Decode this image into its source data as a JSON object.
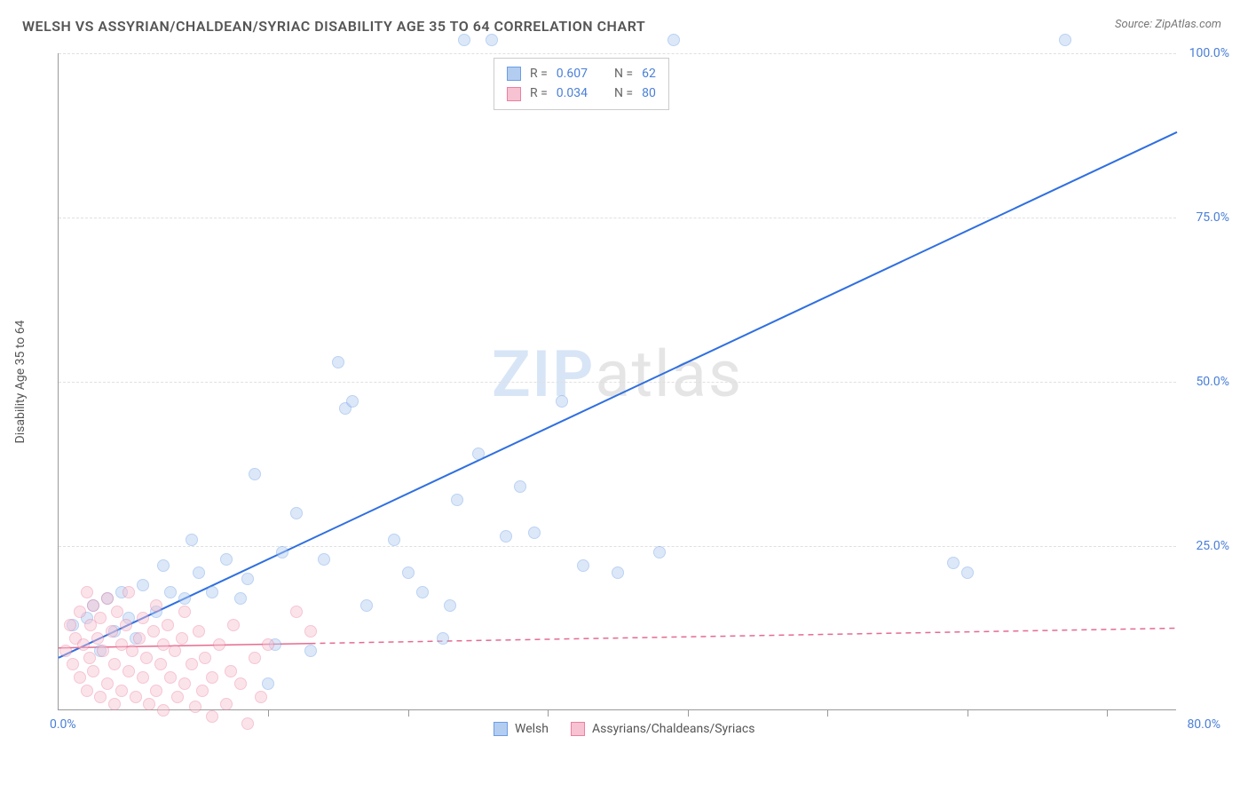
{
  "title": "WELSH VS ASSYRIAN/CHALDEAN/SYRIAC DISABILITY AGE 35 TO 64 CORRELATION CHART",
  "source": "Source: ZipAtlas.com",
  "y_axis_label": "Disability Age 35 to 64",
  "watermark": {
    "prefix": "ZIP",
    "suffix": "atlas"
  },
  "chart": {
    "type": "scatter",
    "background_color": "#ffffff",
    "grid_color": "#e0e0e0",
    "axis_color": "#999999",
    "xlim": [
      0,
      80
    ],
    "ylim": [
      0,
      100
    ],
    "x_origin_label": "0.0%",
    "x_max_label": "80.0%",
    "y_tick_labels": [
      "25.0%",
      "50.0%",
      "75.0%",
      "100.0%"
    ],
    "y_tick_positions": [
      25,
      50,
      75,
      100
    ],
    "x_tick_positions": [
      15,
      25,
      35,
      45,
      55,
      65,
      75
    ],
    "tick_label_color": "#4a7fd8",
    "tick_label_fontsize": 14,
    "marker_radius": 7,
    "marker_opacity": 0.45,
    "marker_stroke_opacity": 0.7
  },
  "series": [
    {
      "name": "Welsh",
      "color": "#77a5e8",
      "fill_color": "#b3cdf0",
      "stroke_color": "#6a9de6",
      "trend": {
        "x1": 0,
        "y1": 8,
        "x2": 80,
        "y2": 88,
        "style": "solid",
        "width": 2,
        "color": "#2f6fe0",
        "solid_until_x": 80
      },
      "points": [
        [
          1,
          13
        ],
        [
          2,
          14
        ],
        [
          2.5,
          16
        ],
        [
          3,
          9
        ],
        [
          3.5,
          17
        ],
        [
          4,
          12
        ],
        [
          4.5,
          18
        ],
        [
          5,
          14
        ],
        [
          5.5,
          11
        ],
        [
          6,
          19
        ],
        [
          7,
          15
        ],
        [
          7.5,
          22
        ],
        [
          8,
          18
        ],
        [
          9,
          17
        ],
        [
          9.5,
          26
        ],
        [
          10,
          21
        ],
        [
          11,
          18
        ],
        [
          12,
          23
        ],
        [
          13,
          17
        ],
        [
          13.5,
          20
        ],
        [
          14,
          36
        ],
        [
          15,
          4
        ],
        [
          15.5,
          10
        ],
        [
          16,
          24
        ],
        [
          17,
          30
        ],
        [
          18,
          9
        ],
        [
          19,
          23
        ],
        [
          20,
          53
        ],
        [
          20.5,
          46
        ],
        [
          21,
          47
        ],
        [
          22,
          16
        ],
        [
          24,
          26
        ],
        [
          25,
          21
        ],
        [
          26,
          18
        ],
        [
          27.5,
          11
        ],
        [
          28,
          16
        ],
        [
          28.5,
          32
        ],
        [
          29,
          102
        ],
        [
          30,
          39
        ],
        [
          31,
          102
        ],
        [
          32,
          26.5
        ],
        [
          33,
          34
        ],
        [
          34,
          27
        ],
        [
          36,
          47
        ],
        [
          37.5,
          22
        ],
        [
          40,
          21
        ],
        [
          43,
          24
        ],
        [
          44,
          102
        ],
        [
          64,
          22.5
        ],
        [
          65,
          21
        ],
        [
          72,
          102
        ]
      ]
    },
    {
      "name": "Assyrians/Chaldeans/Syriacs",
      "color": "#f098b0",
      "fill_color": "#f7c2d1",
      "stroke_color": "#ec7fa0",
      "trend": {
        "x1": 0,
        "y1": 9.5,
        "x2": 80,
        "y2": 12.5,
        "style": "dashed",
        "width": 1.5,
        "color": "#e56b8f",
        "solid_until_x": 18
      },
      "points": [
        [
          0.5,
          9
        ],
        [
          0.8,
          13
        ],
        [
          1,
          7
        ],
        [
          1.2,
          11
        ],
        [
          1.5,
          15
        ],
        [
          1.5,
          5
        ],
        [
          1.8,
          10
        ],
        [
          2,
          18
        ],
        [
          2,
          3
        ],
        [
          2.2,
          8
        ],
        [
          2.3,
          13
        ],
        [
          2.5,
          16
        ],
        [
          2.5,
          6
        ],
        [
          2.8,
          11
        ],
        [
          3,
          2
        ],
        [
          3,
          14
        ],
        [
          3.2,
          9
        ],
        [
          3.5,
          4
        ],
        [
          3.5,
          17
        ],
        [
          3.8,
          12
        ],
        [
          4,
          7
        ],
        [
          4,
          1
        ],
        [
          4.2,
          15
        ],
        [
          4.5,
          10
        ],
        [
          4.5,
          3
        ],
        [
          4.8,
          13
        ],
        [
          5,
          6
        ],
        [
          5,
          18
        ],
        [
          5.3,
          9
        ],
        [
          5.5,
          2
        ],
        [
          5.8,
          11
        ],
        [
          6,
          14
        ],
        [
          6,
          5
        ],
        [
          6.3,
          8
        ],
        [
          6.5,
          1
        ],
        [
          6.8,
          12
        ],
        [
          7,
          3
        ],
        [
          7,
          16
        ],
        [
          7.3,
          7
        ],
        [
          7.5,
          10
        ],
        [
          7.5,
          0
        ],
        [
          7.8,
          13
        ],
        [
          8,
          5
        ],
        [
          8.3,
          9
        ],
        [
          8.5,
          2
        ],
        [
          8.8,
          11
        ],
        [
          9,
          15
        ],
        [
          9,
          4
        ],
        [
          9.5,
          7
        ],
        [
          9.8,
          0.5
        ],
        [
          10,
          12
        ],
        [
          10.3,
          3
        ],
        [
          10.5,
          8
        ],
        [
          11,
          5
        ],
        [
          11,
          -1
        ],
        [
          11.5,
          10
        ],
        [
          12,
          1
        ],
        [
          12.3,
          6
        ],
        [
          12.5,
          13
        ],
        [
          13,
          4
        ],
        [
          13.5,
          -2
        ],
        [
          14,
          8
        ],
        [
          14.5,
          2
        ],
        [
          15,
          10
        ],
        [
          17,
          15
        ],
        [
          18,
          12
        ]
      ]
    }
  ],
  "legend_top": {
    "rows": [
      {
        "swatch_fill": "#b3cdf0",
        "swatch_border": "#6a9de6",
        "r_label": "R =",
        "r_value": "0.607",
        "n_label": "N =",
        "n_value": "62"
      },
      {
        "swatch_fill": "#f7c2d1",
        "swatch_border": "#ec7fa0",
        "r_label": "R =",
        "r_value": "0.034",
        "n_label": "N =",
        "n_value": "80"
      }
    ]
  },
  "legend_bottom": {
    "items": [
      {
        "swatch_fill": "#b3cdf0",
        "swatch_border": "#6a9de6",
        "label": "Welsh"
      },
      {
        "swatch_fill": "#f7c2d1",
        "swatch_border": "#ec7fa0",
        "label": "Assyrians/Chaldeans/Syriacs"
      }
    ]
  }
}
